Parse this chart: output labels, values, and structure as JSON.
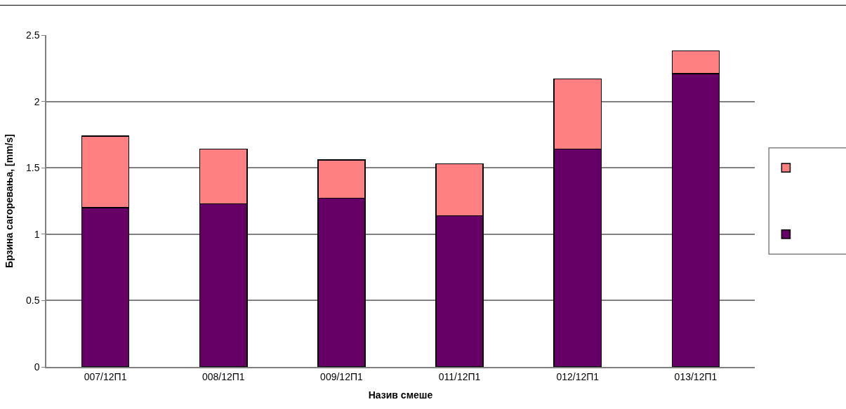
{
  "chart_data": {
    "type": "bar",
    "stacked": true,
    "xlabel": "Назив смеше",
    "ylabel": "Брзина сагоревања, [mm/s]",
    "categories": [
      "007/12П1",
      "008/12П1",
      "009/12П1",
      "011/12П1",
      "012/12П1",
      "013/12П1"
    ],
    "series": [
      {
        "color": "#660066",
        "values": [
          1.2,
          1.23,
          1.27,
          1.14,
          1.64,
          2.21
        ]
      },
      {
        "color": "#ff8080",
        "values": [
          0.54,
          0.41,
          0.29,
          0.39,
          0.53,
          0.17
        ]
      }
    ],
    "ylim": [
      0,
      2.5
    ],
    "yticks": [
      0,
      0.5,
      1,
      1.5,
      2,
      2.5
    ],
    "grid": "y"
  }
}
